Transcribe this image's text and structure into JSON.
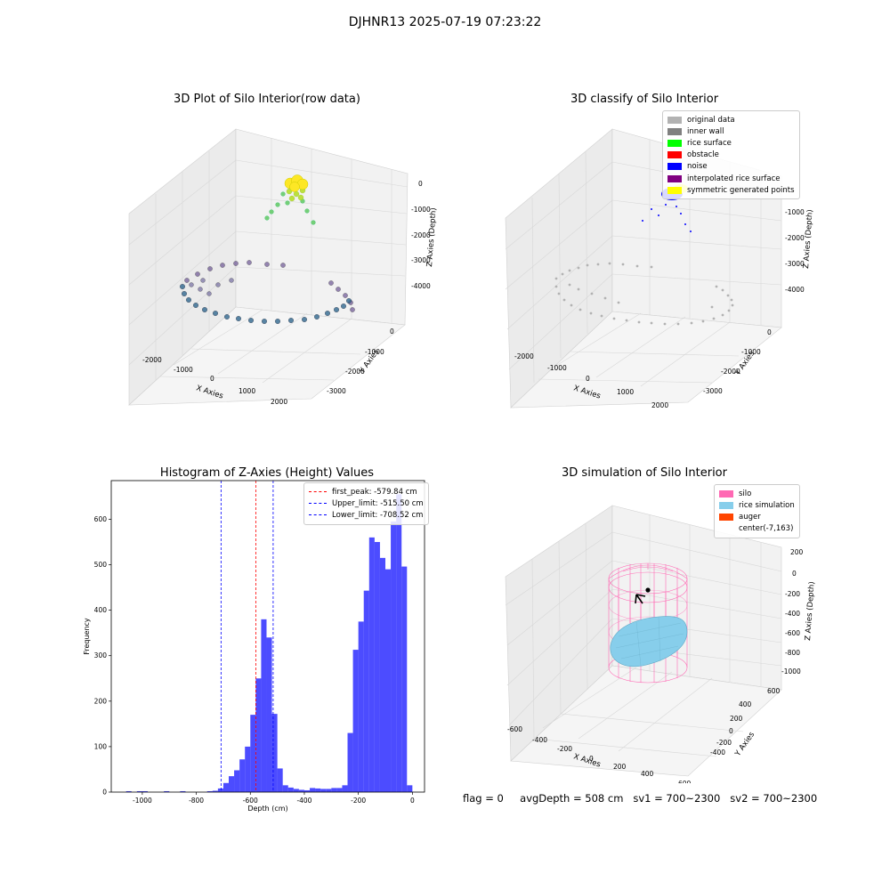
{
  "suptitle": "DJHNR13 2025-07-19 07:23:22",
  "status": {
    "flag": "flag = 0",
    "avgDepth": "avgDepth = 508 cm",
    "sv1": "sv1 = 700~2300",
    "sv2": "sv2 = 700~2300"
  },
  "axis_labels": {
    "x": "X Axies",
    "y": "Y Axies",
    "z": "Z Axies (Depth)",
    "z_alt": "Z Axies (Depth)"
  },
  "chart_data": [
    {
      "type": "scatter",
      "title": "3D Plot of Silo Interior(row data)",
      "xlabel": "X Axies",
      "ylabel": "Y Axies",
      "zlabel": "Z Axies (Depth)",
      "xticks": [
        "-2000",
        "-1000",
        "0",
        "1000",
        "2000"
      ],
      "yticks": [
        "0",
        "-1000",
        "-2000",
        "-3000"
      ],
      "zticks": [
        "0",
        "-1000",
        "-2000",
        "-3000",
        "-4000"
      ],
      "colormap": "viridis",
      "grid": true
    },
    {
      "type": "scatter",
      "title": "3D classify of Silo Interior",
      "xlabel": "X Axies",
      "ylabel": "Y Axies",
      "zlabel": "Z Axies (Depth)",
      "xticks": [
        "-2000",
        "-1000",
        "0",
        "1000",
        "2000"
      ],
      "yticks": [
        "0",
        "-1000",
        "-2000",
        "-3000"
      ],
      "zticks": [
        "-1000",
        "-2000",
        "-3000",
        "-4000"
      ],
      "legend_position": "top-right",
      "legend": [
        {
          "label": "original data",
          "color": "#b2b2b2"
        },
        {
          "label": "inner wall",
          "color": "#808080"
        },
        {
          "label": "rice surface",
          "color": "#00ff00"
        },
        {
          "label": "obstacle",
          "color": "#ff0000"
        },
        {
          "label": "noise",
          "color": "#0000ff"
        },
        {
          "label": "interpolated rice surface",
          "color": "#800080"
        },
        {
          "label": "symmetric generated points",
          "color": "#ffff00"
        }
      ],
      "grid": true
    },
    {
      "type": "bar",
      "title": "Histogram of Z-Axies (Height) Values",
      "xlabel": "Depth (cm)",
      "ylabel": "Frequency",
      "xlim": [
        -1115,
        45
      ],
      "ylim": [
        0,
        685
      ],
      "xticks": [
        "-1000",
        "-800",
        "-600",
        "-400",
        "-200",
        "0"
      ],
      "xtick_values": [
        -1000,
        -800,
        -600,
        -400,
        -200,
        0
      ],
      "yticks": [
        "0",
        "100",
        "200",
        "300",
        "400",
        "500",
        "600"
      ],
      "ytick_values": [
        0,
        100,
        200,
        300,
        400,
        500,
        600
      ],
      "bin_width": 20,
      "bin_edges_start": [
        -1080,
        -1060,
        -1040,
        -1020,
        -1000,
        -980,
        -960,
        -940,
        -920,
        -900,
        -880,
        -860,
        -840,
        -820,
        -800,
        -780,
        -760,
        -740,
        -720,
        -700,
        -680,
        -660,
        -640,
        -620,
        -600,
        -580,
        -560,
        -540,
        -520,
        -500,
        -480,
        -460,
        -440,
        -420,
        -400,
        -380,
        -360,
        -340,
        -320,
        -300,
        -280,
        -260,
        -240,
        -220,
        -200,
        -180,
        -160,
        -140,
        -120,
        -100,
        -80,
        -60,
        -40,
        -20,
        0
      ],
      "values": [
        0,
        2,
        0,
        2,
        2,
        0,
        0,
        0,
        2,
        0,
        0,
        2,
        0,
        0,
        0,
        0,
        2,
        3,
        8,
        20,
        35,
        48,
        72,
        100,
        170,
        250,
        380,
        340,
        172,
        52,
        15,
        10,
        7,
        5,
        4,
        9,
        8,
        7,
        7,
        9,
        9,
        15,
        130,
        313,
        375,
        443,
        560,
        550,
        515,
        490,
        595,
        655,
        496,
        15,
        0
      ],
      "color": "#0000ff",
      "vlines": [
        {
          "label": "first_peak: -579.84 cm",
          "x": -579.84,
          "color": "#ff0000"
        },
        {
          "label": "Upper_limit: -515.50 cm",
          "x": -515.5,
          "color": "#0000ff"
        },
        {
          "label": "Lower_limit: -708.52 cm",
          "x": -708.52,
          "color": "#0000ff"
        }
      ],
      "legend_position": "top-right"
    },
    {
      "type": "scatter",
      "title": "3D simulation of Silo Interior",
      "xlabel": "X Axies",
      "ylabel": "Y Axies",
      "zlabel": "Z Axies (Depth)",
      "xticks": [
        "-600",
        "-400",
        "-200",
        "0",
        "200",
        "400",
        "600"
      ],
      "yticks": [
        "-400",
        "-200",
        "0",
        "200",
        "400",
        "600"
      ],
      "zticks": [
        "200",
        "0",
        "-200",
        "-400",
        "-600",
        "-800",
        "-1000"
      ],
      "legend_position": "top-right",
      "legend": [
        {
          "label": "silo",
          "color": "#ff69b4"
        },
        {
          "label": "rice simulation",
          "color": "#87ceeb"
        },
        {
          "label": "auger",
          "color": "#ff4500"
        },
        {
          "label": "center(-7,163)",
          "color": "none"
        }
      ],
      "grid": true
    }
  ]
}
